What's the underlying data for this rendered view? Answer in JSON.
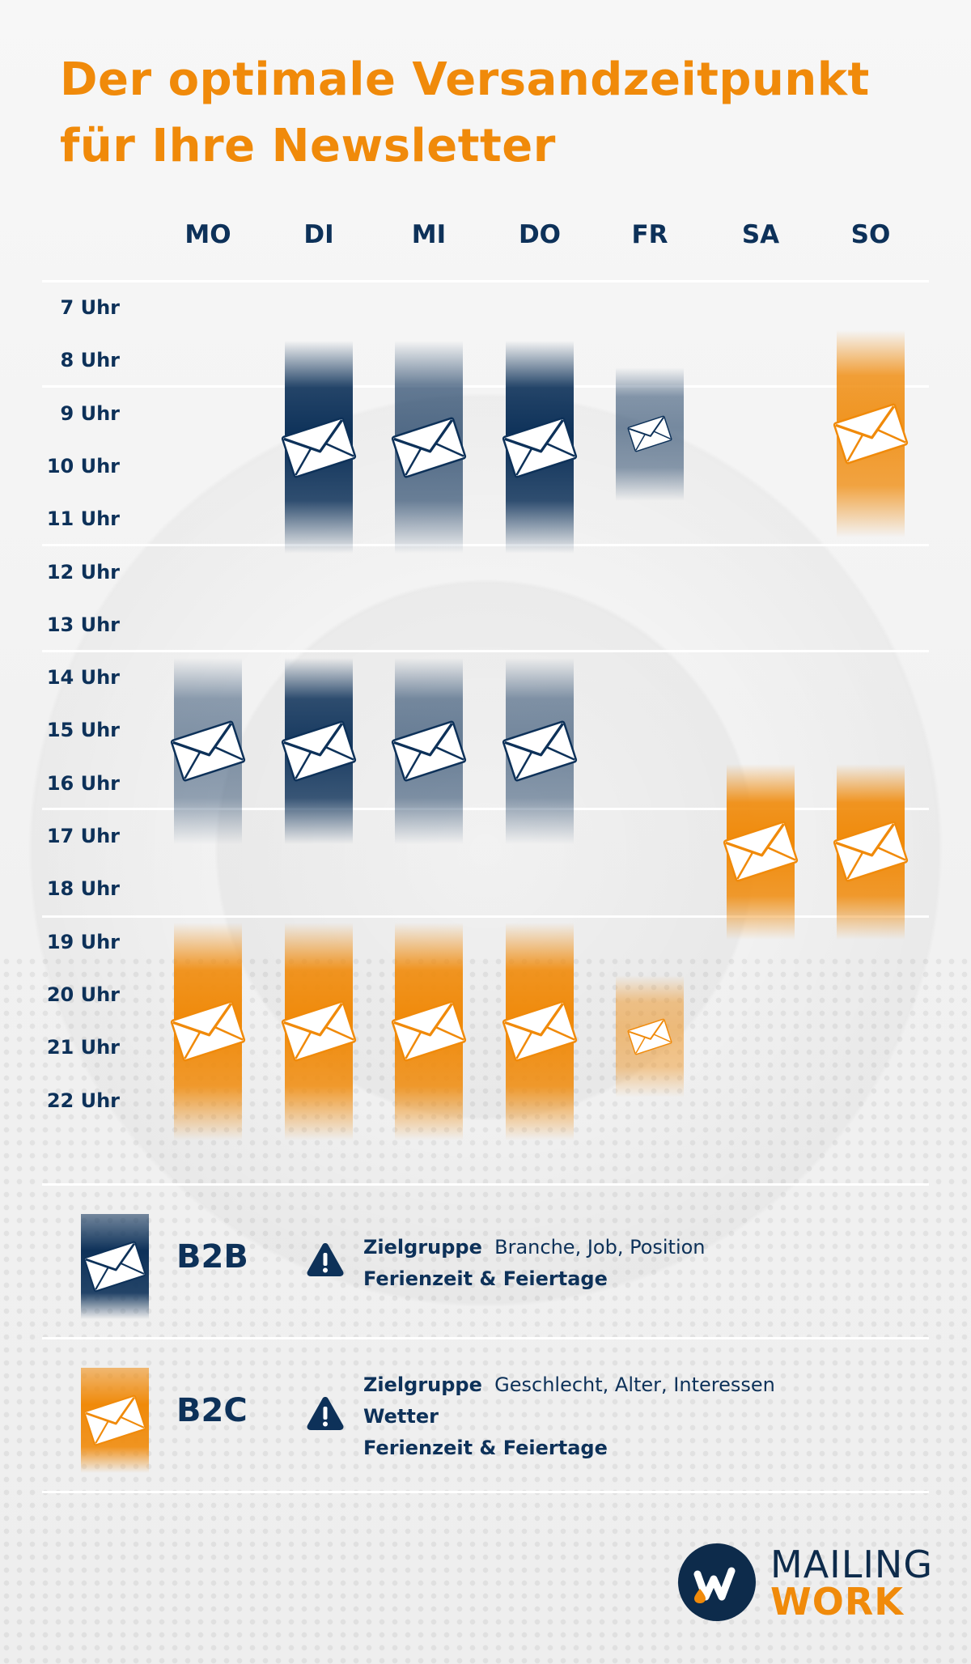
{
  "title": {
    "line1": "Der optimale Versandzeitpunkt",
    "line2": "für Ihre Newsletter"
  },
  "days": [
    "MO",
    "DI",
    "MI",
    "DO",
    "FR",
    "SA",
    "SO"
  ],
  "hours": [
    "7 Uhr",
    "8 Uhr",
    "9 Uhr",
    "10 Uhr",
    "11 Uhr",
    "12 Uhr",
    "13 Uhr",
    "14 Uhr",
    "15 Uhr",
    "16 Uhr",
    "17 Uhr",
    "18 Uhr",
    "19 Uhr",
    "20 Uhr",
    "21 Uhr",
    "22 Uhr"
  ],
  "colors": {
    "b2b": "#0d3159",
    "b2c": "#f08a0a",
    "text": "#0d3159",
    "title": "#f08a0a"
  },
  "schedule": [
    {
      "day": "DI",
      "type": "B2B",
      "start": 8,
      "end": 11.5,
      "intensity": 1.0
    },
    {
      "day": "MI",
      "type": "B2B",
      "start": 8,
      "end": 11.5,
      "intensity": 0.7
    },
    {
      "day": "DO",
      "type": "B2B",
      "start": 8,
      "end": 11.5,
      "intensity": 1.0
    },
    {
      "day": "FR",
      "type": "B2B",
      "start": 8.5,
      "end": 10.5,
      "intensity": 0.55,
      "small": true
    },
    {
      "day": "SO",
      "type": "B2C",
      "start": 7.8,
      "end": 11.2,
      "intensity": 0.9
    },
    {
      "day": "MO",
      "type": "B2B",
      "start": 14,
      "end": 17,
      "intensity": 0.5
    },
    {
      "day": "DI",
      "type": "B2B",
      "start": 14,
      "end": 17,
      "intensity": 0.95
    },
    {
      "day": "MI",
      "type": "B2B",
      "start": 14,
      "end": 17,
      "intensity": 0.6
    },
    {
      "day": "DO",
      "type": "B2B",
      "start": 14,
      "end": 17,
      "intensity": 0.55
    },
    {
      "day": "SA",
      "type": "B2C",
      "start": 16,
      "end": 18.8,
      "intensity": 1.0
    },
    {
      "day": "SO",
      "type": "B2C",
      "start": 16,
      "end": 18.8,
      "intensity": 1.0
    },
    {
      "day": "MO",
      "type": "B2C",
      "start": 19,
      "end": 22.6,
      "intensity": 1.0
    },
    {
      "day": "DI",
      "type": "B2C",
      "start": 19,
      "end": 22.6,
      "intensity": 1.0
    },
    {
      "day": "MI",
      "type": "B2C",
      "start": 19,
      "end": 22.6,
      "intensity": 1.0
    },
    {
      "day": "DO",
      "type": "B2C",
      "start": 19,
      "end": 22.6,
      "intensity": 1.0
    },
    {
      "day": "FR",
      "type": "B2C",
      "start": 20,
      "end": 21.8,
      "intensity": 0.5,
      "small": true
    }
  ],
  "legend": {
    "b2b": {
      "label": "B2B",
      "line1_bold": "Zielgruppe",
      "line1_text": "Branche, Job, Position",
      "line2_bold": "Ferienzeit & Feiertage"
    },
    "b2c": {
      "label": "B2C",
      "line1_bold": "Zielgruppe",
      "line1_text": "Geschlecht, Alter, Interessen",
      "line2_bold": "Wetter",
      "line3_bold": "Ferienzeit & Feiertage"
    }
  },
  "logo": {
    "line1": "MAILING",
    "line2": "WORK"
  },
  "icons": {
    "envelope": "envelope-icon",
    "warning": "warning-triangle-icon",
    "logo": "mailingwork-logo-icon"
  }
}
